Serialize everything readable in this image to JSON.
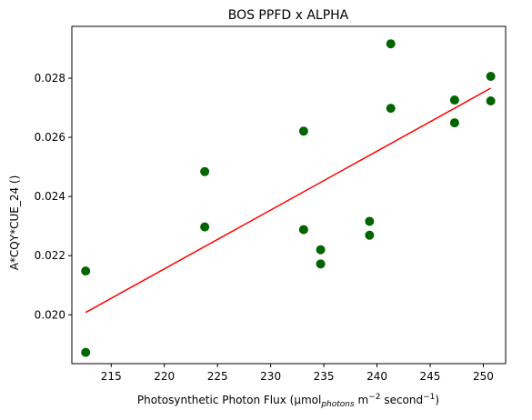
{
  "chart_data": {
    "type": "scatter",
    "title": "BOS PPFD x ALPHA",
    "xlabel_parts": {
      "main": "Photosynthetic Photon Flux (µmol",
      "sub": "photons",
      "mid": " m",
      "sup1": "−2",
      "mid2": " second",
      "sup2": "−1",
      "end": ")"
    },
    "ylabel": "A*CQY*CUE_24 ()",
    "xlim": [
      211.3,
      252.1
    ],
    "ylim": [
      0.01835,
      0.02975
    ],
    "x_ticks": [
      215,
      220,
      225,
      230,
      235,
      240,
      245,
      250
    ],
    "y_ticks": [
      0.02,
      0.022,
      0.024,
      0.026,
      0.028
    ],
    "y_tick_labels": [
      "0.020",
      "0.022",
      "0.024",
      "0.026",
      "0.028"
    ],
    "series": [
      {
        "marker_color": "#006400",
        "points": [
          [
            212.6,
            0.02148
          ],
          [
            212.6,
            0.01873
          ],
          [
            223.8,
            0.02484
          ],
          [
            223.8,
            0.02297
          ],
          [
            233.1,
            0.02621
          ],
          [
            233.1,
            0.02288
          ],
          [
            234.7,
            0.0222
          ],
          [
            234.7,
            0.02172
          ],
          [
            239.3,
            0.02316
          ],
          [
            239.3,
            0.02269
          ],
          [
            241.3,
            0.02916
          ],
          [
            241.3,
            0.02698
          ],
          [
            247.3,
            0.02726
          ],
          [
            247.3,
            0.02649
          ],
          [
            250.7,
            0.02806
          ],
          [
            250.7,
            0.02723
          ]
        ]
      }
    ],
    "fit_line": {
      "color": "#ff0000",
      "points": [
        [
          212.6,
          0.02008
        ],
        [
          250.7,
          0.02766
        ]
      ]
    },
    "grid": false,
    "legend": "none"
  }
}
